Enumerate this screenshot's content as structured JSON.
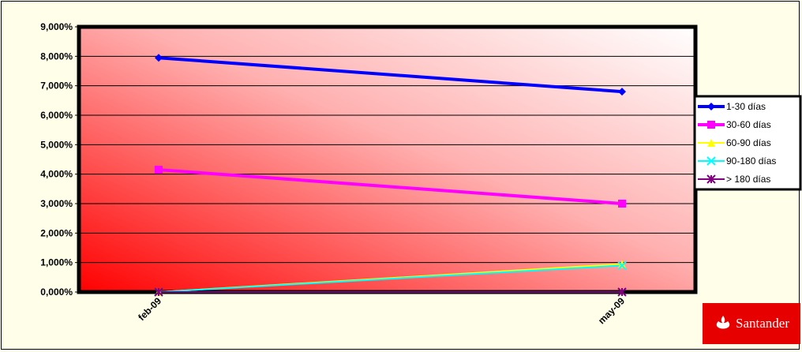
{
  "chart_data": {
    "type": "line",
    "title": "",
    "xlabel": "",
    "ylabel": "",
    "categories": [
      "feb-09",
      "may-09"
    ],
    "ylim": [
      0,
      9
    ],
    "y_tick_labels": [
      "0,000%",
      "1,000%",
      "2,000%",
      "3,000%",
      "4,000%",
      "5,000%",
      "6,000%",
      "7,000%",
      "8,000%",
      "9,000%"
    ],
    "grid": true,
    "legend_position": "right",
    "series": [
      {
        "name": "1-30 días",
        "values": [
          7.95,
          6.8
        ],
        "color": "#0000ff",
        "marker": "diamond"
      },
      {
        "name": "30-60 días",
        "values": [
          4.15,
          3.0
        ],
        "color": "#ff00ff",
        "marker": "square"
      },
      {
        "name": "60-90 días",
        "values": [
          0.0,
          0.95
        ],
        "color": "#ffff00",
        "marker": "triangle"
      },
      {
        "name": "90-180 días",
        "values": [
          0.0,
          0.9
        ],
        "color": "#00ffff",
        "marker": "x"
      },
      {
        "name": "> 180 días",
        "values": [
          0.0,
          0.0
        ],
        "color": "#800080",
        "marker": "star"
      }
    ]
  },
  "logo": {
    "text": "Santander",
    "color": "#e60000"
  }
}
